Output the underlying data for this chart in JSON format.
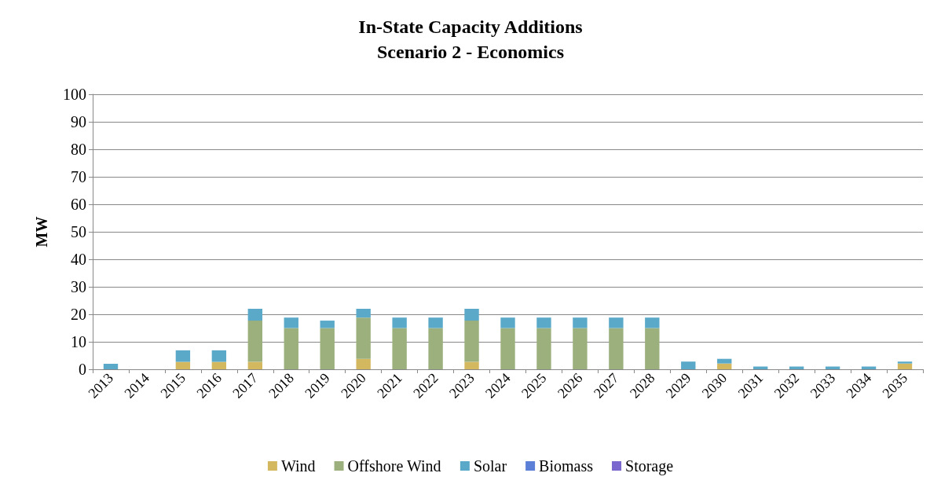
{
  "chart_data": {
    "type": "bar",
    "title": "In-State Capacity Additions\nScenario 2 - Economics",
    "ylabel": "MW",
    "stacked": true,
    "categories": [
      "2013",
      "2014",
      "2015",
      "2016",
      "2017",
      "2018",
      "2019",
      "2020",
      "2021",
      "2022",
      "2023",
      "2024",
      "2025",
      "2026",
      "2027",
      "2028",
      "2029",
      "2030",
      "2031",
      "2032",
      "2033",
      "2034",
      "2035"
    ],
    "series": [
      {
        "name": "Wind",
        "color": "#d4b860",
        "values": [
          0,
          0,
          2.7,
          2.7,
          2.7,
          0,
          0,
          3.8,
          0,
          0,
          2.7,
          0,
          0,
          0,
          0,
          0,
          0,
          2.1,
          0,
          0,
          0,
          0,
          2.1
        ]
      },
      {
        "name": "Offshore Wind",
        "color": "#9bb07c",
        "values": [
          0,
          0,
          0,
          0,
          15,
          15,
          15,
          15,
          15,
          15,
          15,
          15,
          15,
          15,
          15,
          15,
          0,
          0,
          0,
          0,
          0,
          0,
          0
        ]
      },
      {
        "name": "Solar",
        "color": "#5ba9c9",
        "values": [
          2,
          0,
          4.2,
          4.2,
          4.3,
          3.8,
          2.7,
          3.2,
          3.8,
          3.8,
          4.3,
          3.8,
          3.8,
          3.8,
          3.8,
          3.8,
          2.8,
          1.7,
          1,
          1,
          1,
          1,
          0.7
        ]
      },
      {
        "name": "Biomass",
        "color": "#5b7fd6",
        "values": [
          0,
          0,
          0,
          0,
          0,
          0,
          0,
          0,
          0,
          0,
          0,
          0,
          0,
          0,
          0,
          0,
          0,
          0,
          0,
          0,
          0,
          0,
          0
        ]
      },
      {
        "name": "Storage",
        "color": "#7b68cf",
        "values": [
          0,
          0,
          0,
          0,
          0,
          0,
          0,
          0,
          0,
          0,
          0,
          0,
          0,
          0,
          0,
          0,
          0,
          0,
          0,
          0,
          0,
          0,
          0
        ]
      }
    ],
    "ylim": [
      0,
      100
    ],
    "yticks": [
      0,
      10,
      20,
      30,
      40,
      50,
      60,
      70,
      80,
      90,
      100
    ],
    "grid": "y",
    "legend": "bottom"
  }
}
